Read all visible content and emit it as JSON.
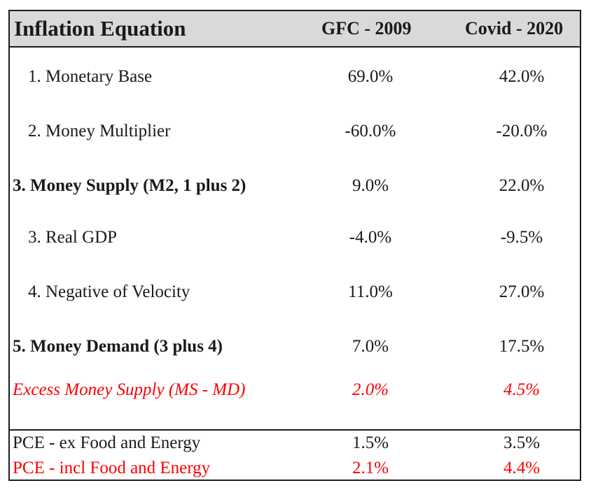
{
  "table": {
    "title": "Inflation Equation",
    "columns": [
      "GFC - 2009",
      "Covid - 2020"
    ],
    "rows": [
      {
        "label": "1. Monetary Base",
        "gfc": "69.0%",
        "covid": "42.0%"
      },
      {
        "label": "2. Money Multiplier",
        "gfc": "-60.0%",
        "covid": "-20.0%"
      },
      {
        "label": "3. Money Supply (M2, 1 plus 2)",
        "gfc": "9.0%",
        "covid": "22.0%"
      },
      {
        "label": "3. Real GDP",
        "gfc": "-4.0%",
        "covid": "-9.5%"
      },
      {
        "label": "4. Negative of Velocity",
        "gfc": "11.0%",
        "covid": "27.0%"
      },
      {
        "label": "5. Money Demand (3 plus 4)",
        "gfc": "7.0%",
        "covid": "17.5%"
      },
      {
        "label": "Excess Money Supply (MS - MD)",
        "gfc": "2.0%",
        "covid": "4.5%"
      }
    ],
    "pce_rows": [
      {
        "label": "PCE - ex Food and Energy",
        "gfc": "1.5%",
        "covid": "3.5%"
      },
      {
        "label": "PCE - incl Food and Energy",
        "gfc": "2.1%",
        "covid": "4.4%"
      }
    ]
  },
  "colors": {
    "highlight": "#ff0000",
    "header_bg": "#d9d9d9",
    "border": "#1c1c1c"
  }
}
